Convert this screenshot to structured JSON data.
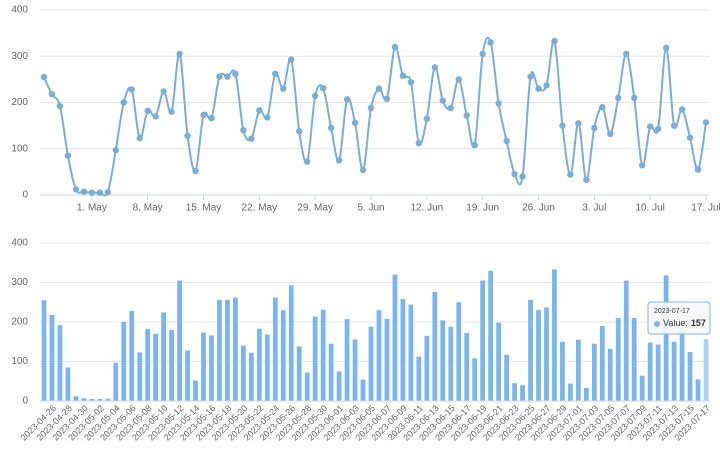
{
  "chart_data": [
    {
      "type": "line",
      "color": "#7aaed6",
      "x": [
        "04-25",
        "04-26",
        "04-27",
        "04-28",
        "04-29",
        "04-30",
        "05-01",
        "05-02",
        "05-03",
        "05-04",
        "05-05",
        "05-06",
        "05-07",
        "05-08",
        "05-09",
        "05-10",
        "05-11",
        "05-12",
        "05-13",
        "05-14",
        "05-15",
        "05-16",
        "05-17",
        "05-18",
        "05-19",
        "05-20",
        "05-21",
        "05-22",
        "05-23",
        "05-24",
        "05-25",
        "05-26",
        "05-27",
        "05-28",
        "05-29",
        "05-30",
        "05-31",
        "06-01",
        "06-02",
        "06-03",
        "06-04",
        "06-05",
        "06-06",
        "06-07",
        "06-08",
        "06-09",
        "06-10",
        "06-11",
        "06-12",
        "06-13",
        "06-14",
        "06-15",
        "06-16",
        "06-17",
        "06-18",
        "06-19",
        "06-20",
        "06-21",
        "06-22",
        "06-23",
        "06-24",
        "06-25",
        "06-26",
        "06-27",
        "06-28",
        "06-29",
        "06-30",
        "07-01",
        "07-02",
        "07-03",
        "07-04",
        "07-05",
        "07-06",
        "07-07",
        "07-08",
        "07-09",
        "07-10",
        "07-11",
        "07-12",
        "07-13",
        "07-14",
        "07-15",
        "07-16",
        "07-17"
      ],
      "values": [
        255,
        218,
        192,
        85,
        12,
        7,
        5,
        5,
        6,
        97,
        200,
        228,
        123,
        182,
        170,
        224,
        180,
        305,
        128,
        52,
        173,
        166,
        256,
        256,
        262,
        140,
        122,
        183,
        168,
        262,
        230,
        293,
        138,
        72,
        214,
        231,
        145,
        75,
        207,
        156,
        54,
        188,
        230,
        208,
        320,
        258,
        244,
        112,
        165,
        276,
        204,
        188,
        250,
        172,
        108,
        305,
        330,
        198,
        117,
        45,
        40,
        256,
        230,
        237,
        333,
        150,
        44,
        155,
        33,
        145,
        190,
        132,
        210,
        305,
        210,
        64,
        148,
        143,
        318,
        150,
        185,
        124,
        55,
        157
      ],
      "xticks": [
        {
          "value": "05-01",
          "label": "1. May"
        },
        {
          "value": "05-08",
          "label": "8. May"
        },
        {
          "value": "05-15",
          "label": "15. May"
        },
        {
          "value": "05-22",
          "label": "22. May"
        },
        {
          "value": "05-29",
          "label": "29. May"
        },
        {
          "value": "06-05",
          "label": "5. Jun"
        },
        {
          "value": "06-12",
          "label": "12. Jun"
        },
        {
          "value": "06-19",
          "label": "19. Jun"
        },
        {
          "value": "06-26",
          "label": "26. Jun"
        },
        {
          "value": "07-03",
          "label": "3. Jul"
        },
        {
          "value": "07-10",
          "label": "10. Jul"
        },
        {
          "value": "07-17",
          "label": "17. Jul"
        }
      ],
      "ylim": [
        0,
        400
      ],
      "yticks": [
        0,
        100,
        200,
        300,
        400
      ],
      "grid": true
    },
    {
      "type": "bar",
      "color": "#7cb5ec",
      "categories": [
        null,
        "2023-04-26",
        null,
        "2023-04-28",
        null,
        "2023-04-30",
        null,
        "2023-05-02",
        null,
        "2023-05-04",
        null,
        "2023-05-06",
        null,
        "2023-05-08",
        null,
        "2023-05-10",
        null,
        "2023-05-12",
        null,
        "2023-05-14",
        null,
        "2023-05-16",
        null,
        "2023-05-18",
        null,
        "2023-05-20",
        null,
        "2023-05-22",
        null,
        "2023-05-24",
        null,
        "2023-05-26",
        null,
        "2023-05-28",
        null,
        "2023-05-30",
        null,
        "2023-06-01",
        null,
        "2023-06-03",
        null,
        "2023-06-05",
        null,
        "2023-06-07",
        null,
        "2023-06-09",
        null,
        "2023-06-11",
        null,
        "2023-06-13",
        null,
        "2023-06-15",
        null,
        "2023-06-17",
        null,
        "2023-06-19",
        null,
        "2023-06-21",
        null,
        "2023-06-23",
        null,
        "2023-06-25",
        null,
        "2023-06-27",
        null,
        "2023-06-29",
        null,
        "2023-07-01",
        null,
        "2023-07-03",
        null,
        "2023-07-05",
        null,
        "2023-07-07",
        null,
        "2023-07-09",
        null,
        "2023-07-11",
        null,
        "2023-07-13",
        null,
        "2023-07-15",
        null,
        "2023-07-17"
      ],
      "values": [
        255,
        218,
        192,
        85,
        12,
        7,
        5,
        5,
        6,
        97,
        200,
        228,
        123,
        182,
        170,
        224,
        180,
        305,
        128,
        52,
        173,
        166,
        256,
        256,
        262,
        140,
        122,
        183,
        168,
        262,
        230,
        293,
        138,
        72,
        214,
        231,
        145,
        75,
        207,
        156,
        54,
        188,
        230,
        208,
        320,
        258,
        244,
        112,
        165,
        276,
        204,
        188,
        250,
        172,
        108,
        305,
        330,
        198,
        117,
        45,
        40,
        256,
        230,
        237,
        333,
        150,
        44,
        155,
        33,
        145,
        190,
        132,
        210,
        305,
        210,
        64,
        148,
        143,
        318,
        150,
        185,
        124,
        55,
        157
      ],
      "ylim": [
        0,
        400
      ],
      "yticks": [
        0,
        100,
        200,
        300,
        400
      ],
      "grid": true,
      "tooltip": {
        "title": "2023-07-17",
        "label": "Value:",
        "value": 157
      }
    }
  ]
}
